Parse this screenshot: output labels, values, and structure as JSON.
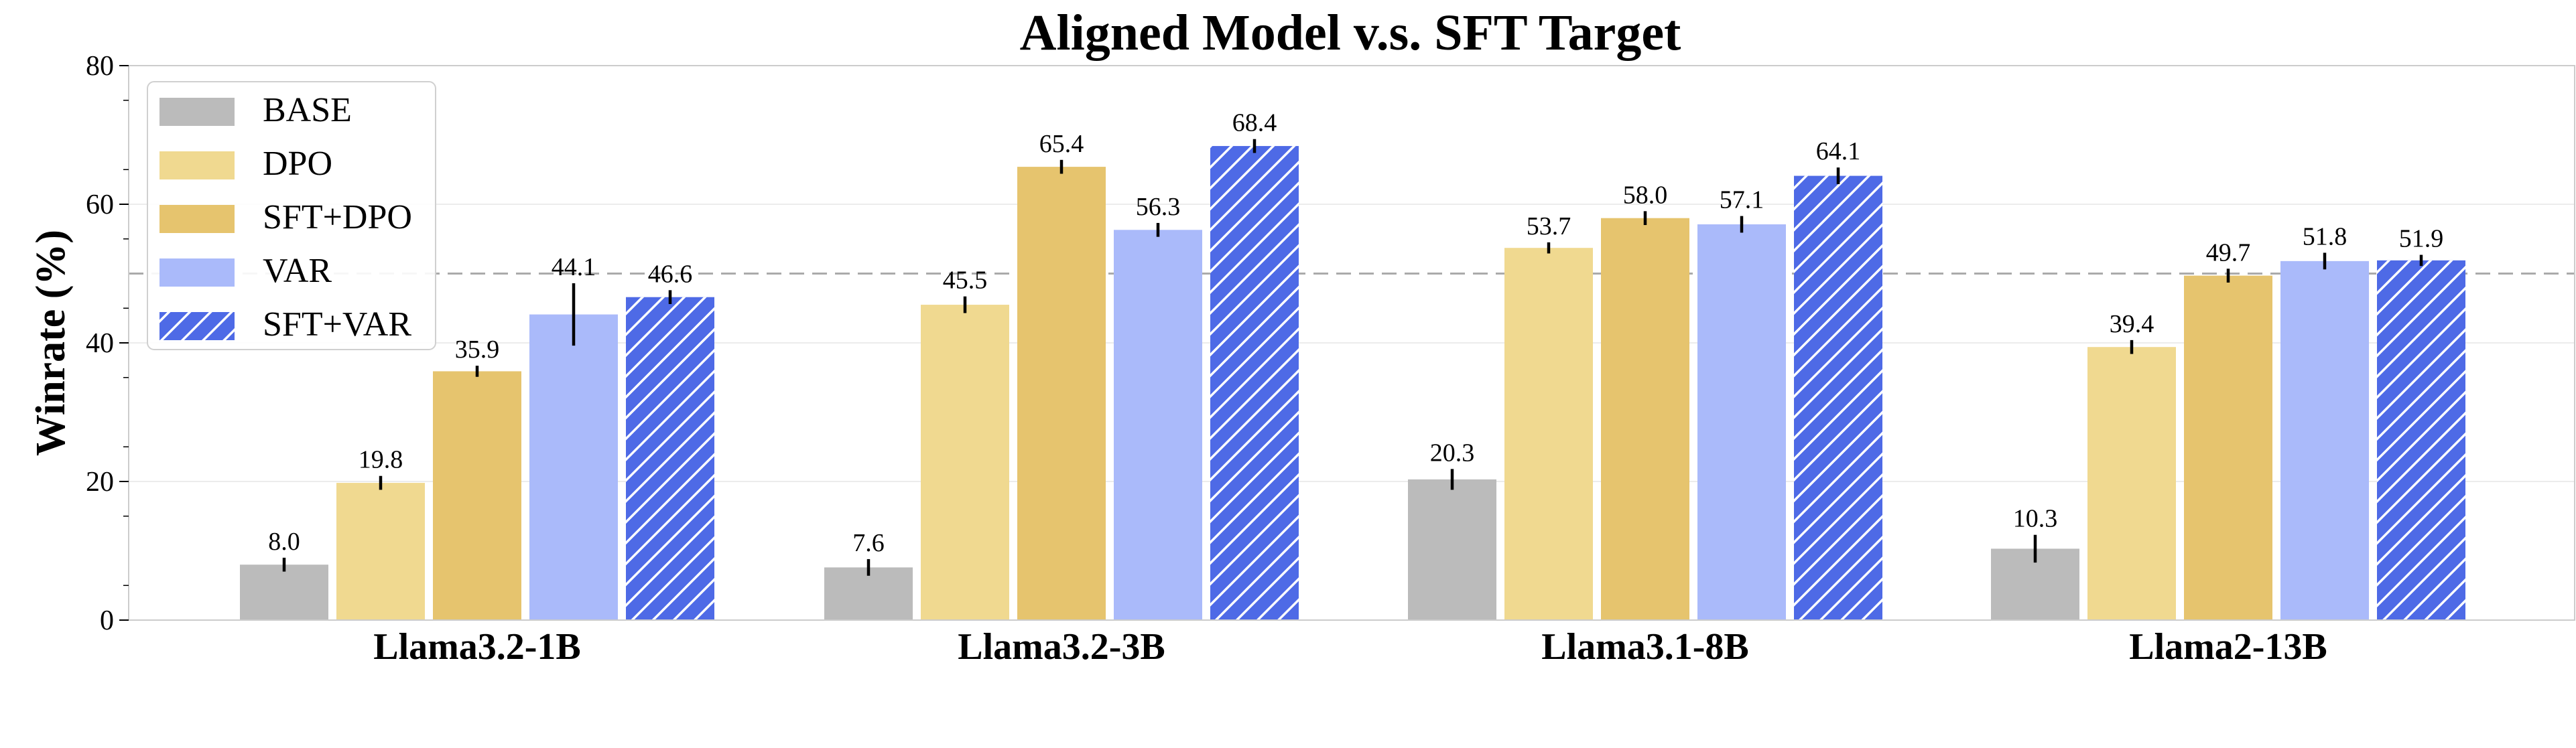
{
  "chart_data": {
    "type": "bar",
    "title": "Aligned Model v.s. SFT Target",
    "xlabel": "",
    "ylabel": "Winrate (%)",
    "ylim": [
      0,
      80
    ],
    "yticks": [
      0,
      20,
      40,
      60,
      80
    ],
    "grid": true,
    "reference_line": 50,
    "legend_position": "top-left",
    "categories": [
      "Llama3.2-1B",
      "Llama3.2-3B",
      "Llama3.1-8B",
      "Llama2-13B"
    ],
    "series": [
      {
        "name": "BASE",
        "values": [
          8.0,
          7.6,
          20.3,
          10.3
        ],
        "errors": [
          1.0,
          1.2,
          1.5,
          2.0
        ],
        "color": "#bbbbbb",
        "hatch": false
      },
      {
        "name": "DPO",
        "values": [
          19.8,
          45.5,
          53.7,
          39.4
        ],
        "errors": [
          1.0,
          1.2,
          0.8,
          1.0
        ],
        "color": "#f0d990",
        "hatch": false
      },
      {
        "name": "SFT+DPO",
        "values": [
          35.9,
          65.4,
          58.0,
          49.7
        ],
        "errors": [
          0.8,
          1.0,
          1.0,
          1.0
        ],
        "color": "#e6c46e",
        "hatch": false
      },
      {
        "name": "VAR",
        "values": [
          44.1,
          56.3,
          57.1,
          51.8
        ],
        "errors": [
          4.5,
          1.0,
          1.2,
          1.2
        ],
        "color": "#aabafa",
        "hatch": false
      },
      {
        "name": "SFT+VAR",
        "values": [
          46.6,
          68.4,
          64.1,
          51.9
        ],
        "errors": [
          1.0,
          1.0,
          1.2,
          0.8
        ],
        "color": "#4e6ae6",
        "hatch": true
      }
    ]
  }
}
